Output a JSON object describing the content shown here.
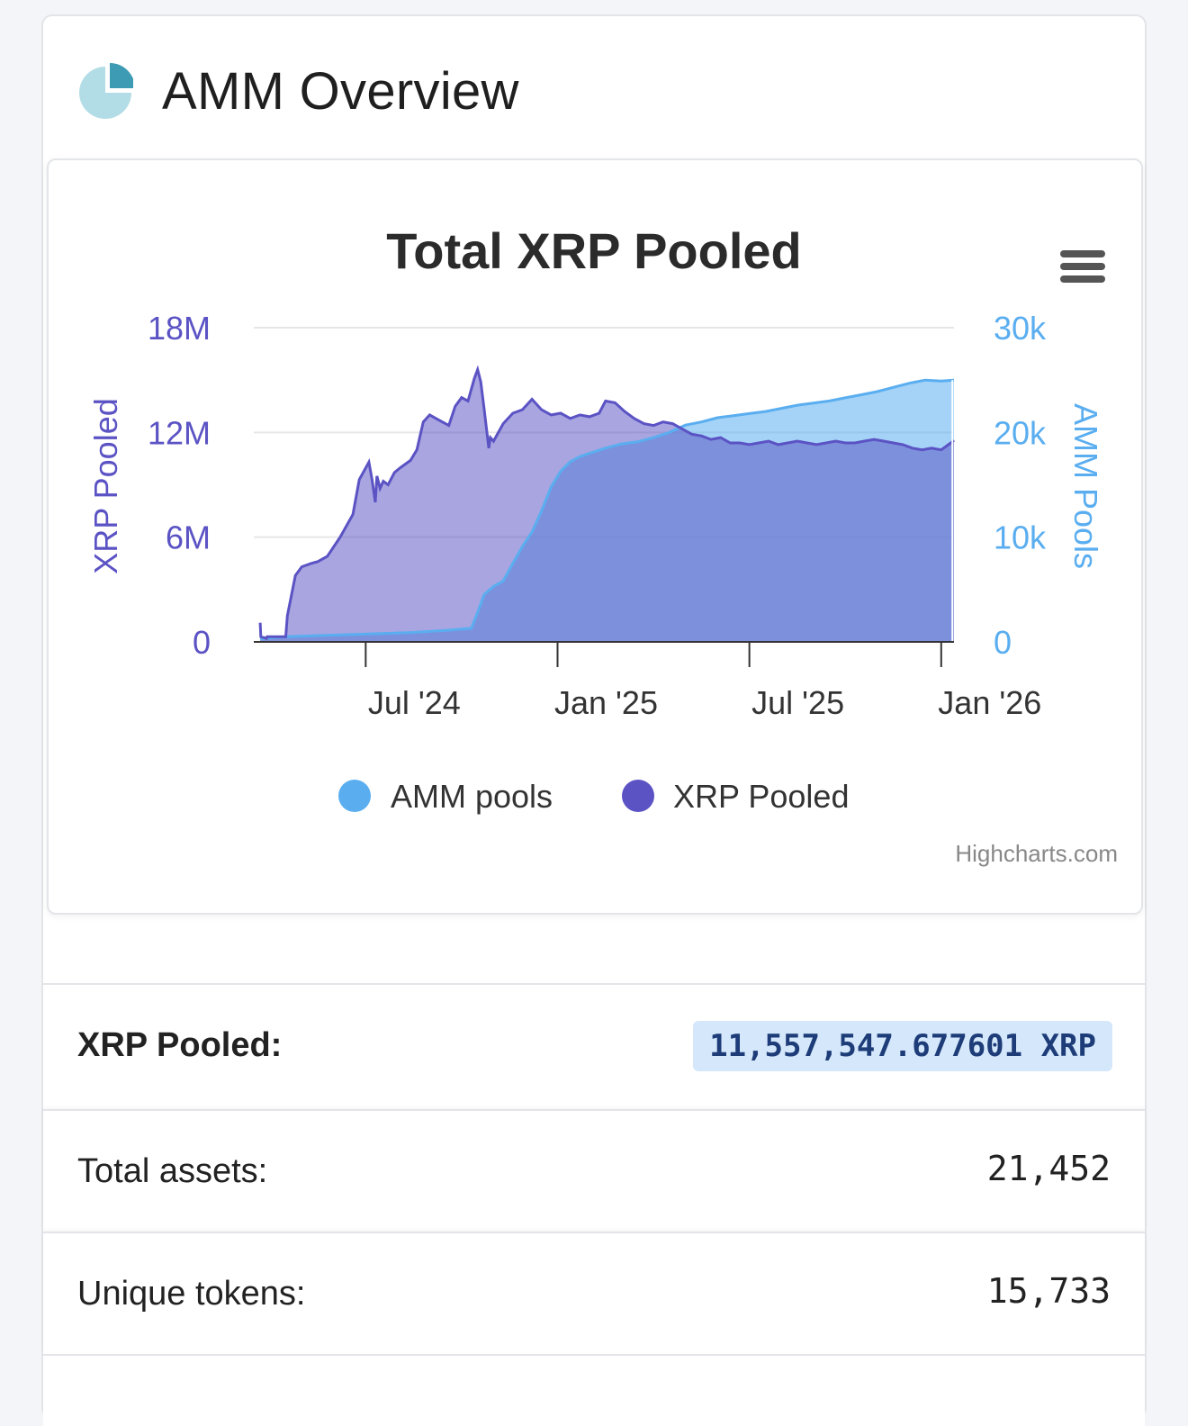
{
  "header": {
    "title": "AMM Overview",
    "icon": "pie-chart-icon"
  },
  "chart": {
    "menu_icon": "hamburger-menu-icon",
    "credit": "Highcharts.com"
  },
  "chart_data": {
    "type": "area",
    "title": "Total XRP Pooled",
    "x_tick_labels": [
      "Jul '24",
      "Jan '25",
      "Jul '25",
      "Jan '26"
    ],
    "x_ticks_month_index": [
      6,
      12,
      18,
      24
    ],
    "x_range_month_index": [
      2.5,
      24.4
    ],
    "y_left": {
      "label": "XRP Pooled",
      "tick_labels": [
        "0",
        "6M",
        "12M",
        "18M"
      ],
      "ticks": [
        0,
        6000000,
        12000000,
        18000000
      ],
      "range": [
        0,
        18000000
      ]
    },
    "y_right": {
      "label": "AMM Pools",
      "tick_labels": [
        "0",
        "10k",
        "20k",
        "30k"
      ],
      "ticks": [
        0,
        10000,
        20000,
        30000
      ],
      "range": [
        0,
        30000
      ]
    },
    "legend": [
      {
        "name": "AMM pools",
        "color": "#5aaef0"
      },
      {
        "name": "XRP Pooled",
        "color": "#5b53c4"
      }
    ],
    "series": [
      {
        "name": "XRP Pooled",
        "axis": "left",
        "color": "#5b53c4",
        "x": [
          2.7,
          2.72,
          2.9,
          2.92,
          3.5,
          3.55,
          3.8,
          4.0,
          4.3,
          4.5,
          4.8,
          5.2,
          5.6,
          5.8,
          6.1,
          6.2,
          6.3,
          6.35,
          6.45,
          6.55,
          6.7,
          6.9,
          7.1,
          7.4,
          7.6,
          7.8,
          8.0,
          8.3,
          8.6,
          8.8,
          9.0,
          9.2,
          9.4,
          9.5,
          9.6,
          9.7,
          9.85,
          9.9,
          10.0,
          10.3,
          10.6,
          10.9,
          11.2,
          11.5,
          11.8,
          12.1,
          12.4,
          12.7,
          13.0,
          13.3,
          13.5,
          13.8,
          14.1,
          14.4,
          14.7,
          15.0,
          15.3,
          15.6,
          15.9,
          16.2,
          16.5,
          16.8,
          17.1,
          17.4,
          17.7,
          18.0,
          18.3,
          18.6,
          18.9,
          19.2,
          19.5,
          19.8,
          20.1,
          20.4,
          20.7,
          21.0,
          21.3,
          21.6,
          21.9,
          22.2,
          22.5,
          22.8,
          23.1,
          23.4,
          23.7,
          24.0,
          24.3,
          24.4
        ],
        "values": [
          1100000.0,
          300000.0,
          200000.0,
          300000.0,
          300000.0,
          1500000.0,
          3800000.0,
          4300000.0,
          4500000.0,
          4600000.0,
          4900000.0,
          6000000.0,
          7300000.0,
          9300000.0,
          10300000.0,
          9300000.0,
          8000000.0,
          9500000.0,
          8800000.0,
          9200000.0,
          9000000.0,
          9700000.0,
          10000000.0,
          10400000.0,
          11000000.0,
          12600000.0,
          13000000.0,
          12700000.0,
          12400000.0,
          13500000.0,
          14000000.0,
          13800000.0,
          15100000.0,
          15600000.0,
          14900000.0,
          13400000.0,
          11100000.0,
          11700000.0,
          11500000.0,
          12500000.0,
          13100000.0,
          13300000.0,
          13900000.0,
          13300000.0,
          13000000.0,
          13100000.0,
          12800000.0,
          13000000.0,
          12900000.0,
          13100000.0,
          13800000.0,
          13700000.0,
          13200000.0,
          12800000.0,
          12500000.0,
          12400000.0,
          12600000.0,
          12500000.0,
          12200000.0,
          11900000.0,
          11800000.0,
          11600000.0,
          11700000.0,
          11400000.0,
          11400000.0,
          11300000.0,
          11400000.0,
          11500000.0,
          11300000.0,
          11400000.0,
          11500000.0,
          11400000.0,
          11300000.0,
          11400000.0,
          11500000.0,
          11400000.0,
          11400000.0,
          11500000.0,
          11600000.0,
          11500000.0,
          11400000.0,
          11300000.0,
          11100000.0,
          11000000.0,
          11100000.0,
          11000000.0,
          11400000.0,
          11550000.0
        ]
      },
      {
        "name": "AMM pools",
        "axis": "right",
        "color": "#5aaef0",
        "x": [
          2.7,
          3.5,
          4.5,
          5.5,
          6.5,
          7.5,
          8.5,
          9.3,
          9.5,
          9.7,
          10.0,
          10.3,
          10.6,
          10.9,
          11.2,
          11.5,
          11.8,
          12.1,
          12.4,
          12.7,
          13.0,
          13.5,
          14.0,
          14.5,
          15.0,
          15.5,
          16.0,
          16.5,
          17.0,
          17.5,
          18.0,
          18.5,
          19.0,
          19.5,
          20.0,
          20.5,
          21.0,
          21.5,
          22.0,
          22.5,
          23.0,
          23.5,
          24.0,
          24.4
        ],
        "values": [
          300,
          500,
          600,
          700,
          800,
          900,
          1100,
          1300,
          2800,
          4500,
          5300,
          5800,
          7500,
          9100,
          10500,
          12500,
          14800,
          16300,
          17200,
          17700,
          18000,
          18500,
          18900,
          19100,
          19500,
          20000,
          20700,
          21000,
          21400,
          21600,
          21800,
          22000,
          22300,
          22600,
          22800,
          23000,
          23300,
          23600,
          23900,
          24300,
          24700,
          25000,
          24900,
          25000
        ]
      }
    ]
  },
  "stats": {
    "xrp_pooled_label": "XRP Pooled:",
    "xrp_pooled_value": "11,557,547.677601 XRP",
    "total_assets_label": "Total assets:",
    "total_assets_value": "21,452",
    "unique_tokens_label": "Unique tokens:",
    "unique_tokens_value": "15,733"
  }
}
